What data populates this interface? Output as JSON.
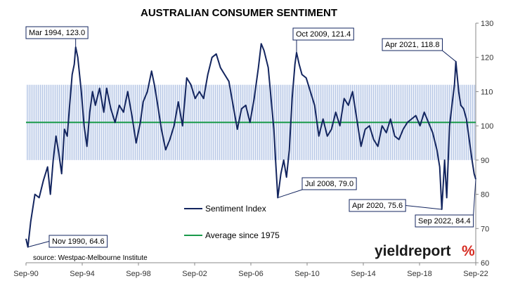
{
  "chart_data": {
    "type": "line",
    "title": "AUSTRALIAN CONSUMER SENTIMENT",
    "source": "source: Westpac-Melbourne Institute",
    "brand": {
      "part1": "yield",
      "part2": "report",
      "symbol": "%",
      "color_dark": "#1a1a1a",
      "color_accent": "#d62a20"
    },
    "x_tick_labels": [
      "Sep-90",
      "Sep-94",
      "Sep-98",
      "Sep-02",
      "Sep-06",
      "Sep-10",
      "Sep-14",
      "Sep-18",
      "Sep-22"
    ],
    "x_tick_years": [
      1990.667,
      1994.667,
      1998.667,
      2002.667,
      2006.667,
      2010.667,
      2014.667,
      2018.667,
      2022.667
    ],
    "xlim": [
      1990.667,
      2022.667
    ],
    "ylim": [
      60,
      130
    ],
    "y_ticks": [
      60,
      70,
      80,
      90,
      100,
      110,
      120,
      130
    ],
    "y_axis_side": "right",
    "band": {
      "low": 90,
      "high": 112,
      "color": "#c9d5ec"
    },
    "series": [
      {
        "name": "Sentiment Index",
        "color": "#13255f",
        "points": [
          [
            1990.667,
            67
          ],
          [
            1990.8,
            64.6
          ],
          [
            1991.0,
            72
          ],
          [
            1991.3,
            80
          ],
          [
            1991.6,
            79
          ],
          [
            1991.9,
            84
          ],
          [
            1992.2,
            88
          ],
          [
            1992.4,
            80
          ],
          [
            1992.6,
            90
          ],
          [
            1992.8,
            97
          ],
          [
            1993.0,
            92
          ],
          [
            1993.2,
            86
          ],
          [
            1993.4,
            99
          ],
          [
            1993.6,
            97
          ],
          [
            1993.75,
            105
          ],
          [
            1993.95,
            115
          ],
          [
            1994.1,
            118
          ],
          [
            1994.2,
            123
          ],
          [
            1994.35,
            120
          ],
          [
            1994.6,
            110
          ],
          [
            1994.8,
            100
          ],
          [
            1995.0,
            94
          ],
          [
            1995.2,
            104
          ],
          [
            1995.4,
            110
          ],
          [
            1995.6,
            106
          ],
          [
            1995.9,
            111
          ],
          [
            1996.2,
            104
          ],
          [
            1996.4,
            111
          ],
          [
            1996.7,
            105
          ],
          [
            1997.0,
            101
          ],
          [
            1997.3,
            106
          ],
          [
            1997.6,
            104
          ],
          [
            1997.9,
            110
          ],
          [
            1998.2,
            103
          ],
          [
            1998.5,
            95
          ],
          [
            1998.8,
            101
          ],
          [
            1999.0,
            107
          ],
          [
            1999.3,
            110
          ],
          [
            1999.6,
            116
          ],
          [
            1999.8,
            112
          ],
          [
            2000.0,
            107
          ],
          [
            2000.3,
            99
          ],
          [
            2000.6,
            93
          ],
          [
            2000.9,
            96
          ],
          [
            2001.2,
            100
          ],
          [
            2001.5,
            107
          ],
          [
            2001.8,
            100
          ],
          [
            2002.1,
            114
          ],
          [
            2002.4,
            112
          ],
          [
            2002.7,
            108
          ],
          [
            2003.0,
            110
          ],
          [
            2003.3,
            108
          ],
          [
            2003.6,
            115
          ],
          [
            2003.9,
            120
          ],
          [
            2004.2,
            121
          ],
          [
            2004.5,
            117
          ],
          [
            2004.8,
            115
          ],
          [
            2005.1,
            113
          ],
          [
            2005.4,
            106
          ],
          [
            2005.7,
            99
          ],
          [
            2006.0,
            105
          ],
          [
            2006.3,
            106
          ],
          [
            2006.6,
            101
          ],
          [
            2006.9,
            108
          ],
          [
            2007.2,
            117
          ],
          [
            2007.4,
            124
          ],
          [
            2007.6,
            122
          ],
          [
            2007.9,
            117
          ],
          [
            2008.1,
            108
          ],
          [
            2008.3,
            99
          ],
          [
            2008.45,
            88
          ],
          [
            2008.58,
            79
          ],
          [
            2008.8,
            86
          ],
          [
            2009.0,
            90
          ],
          [
            2009.2,
            85
          ],
          [
            2009.4,
            93
          ],
          [
            2009.6,
            108
          ],
          [
            2009.8,
            118
          ],
          [
            2009.917,
            121.4
          ],
          [
            2010.1,
            118
          ],
          [
            2010.3,
            115
          ],
          [
            2010.6,
            114
          ],
          [
            2010.9,
            110
          ],
          [
            2011.2,
            106
          ],
          [
            2011.5,
            97
          ],
          [
            2011.8,
            102
          ],
          [
            2012.1,
            97
          ],
          [
            2012.4,
            99
          ],
          [
            2012.7,
            104
          ],
          [
            2013.0,
            100
          ],
          [
            2013.3,
            108
          ],
          [
            2013.6,
            106
          ],
          [
            2013.9,
            110
          ],
          [
            2014.2,
            102
          ],
          [
            2014.5,
            94
          ],
          [
            2014.8,
            99
          ],
          [
            2015.1,
            100
          ],
          [
            2015.4,
            96
          ],
          [
            2015.7,
            94
          ],
          [
            2016.0,
            100
          ],
          [
            2016.3,
            98
          ],
          [
            2016.6,
            102
          ],
          [
            2016.9,
            97
          ],
          [
            2017.2,
            96
          ],
          [
            2017.5,
            99
          ],
          [
            2017.8,
            101
          ],
          [
            2018.1,
            102
          ],
          [
            2018.4,
            103
          ],
          [
            2018.7,
            100
          ],
          [
            2019.0,
            104
          ],
          [
            2019.3,
            101
          ],
          [
            2019.6,
            98
          ],
          [
            2019.9,
            93
          ],
          [
            2020.1,
            88
          ],
          [
            2020.25,
            75.6
          ],
          [
            2020.45,
            90
          ],
          [
            2020.6,
            79
          ],
          [
            2020.8,
            100
          ],
          [
            2021.0,
            107
          ],
          [
            2021.15,
            112
          ],
          [
            2021.25,
            118.8
          ],
          [
            2021.45,
            110
          ],
          [
            2021.6,
            106
          ],
          [
            2021.8,
            105
          ],
          [
            2022.0,
            102
          ],
          [
            2022.2,
            96
          ],
          [
            2022.4,
            90
          ],
          [
            2022.55,
            86
          ],
          [
            2022.667,
            84.4
          ]
        ]
      },
      {
        "name": "Average since 1975",
        "color": "#1a9a4a",
        "constant": 101
      }
    ],
    "annotations": [
      {
        "label": "Mar 1994, 123.0",
        "x": 1994.2,
        "y": 123.0
      },
      {
        "label": "Nov 1990, 64.6",
        "x": 1990.8,
        "y": 64.6
      },
      {
        "label": "Oct 2009, 121.4",
        "x": 2009.917,
        "y": 121.4
      },
      {
        "label": "Jul 2008, 79.0",
        "x": 2008.58,
        "y": 79.0
      },
      {
        "label": "Apr 2021, 118.8",
        "x": 2021.25,
        "y": 118.8
      },
      {
        "label": "Apr 2020, 75.6",
        "x": 2020.25,
        "y": 75.6
      },
      {
        "label": "Sep 2022, 84.4",
        "x": 2022.667,
        "y": 84.4
      }
    ],
    "legend_placement": "center-bottom",
    "grid": false
  }
}
